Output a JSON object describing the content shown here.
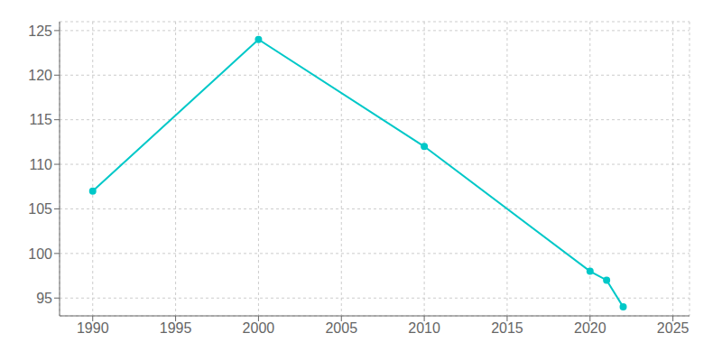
{
  "chart_data": {
    "type": "line",
    "x": [
      1990,
      2000,
      2010,
      2020,
      2021,
      2022
    ],
    "values": [
      107,
      124,
      112,
      98,
      97,
      94
    ],
    "color": "#00C8C8",
    "marker": "circle",
    "xlim": [
      1988,
      2026
    ],
    "ylim": [
      93,
      126
    ],
    "xticks": [
      1990,
      1995,
      2000,
      2005,
      2010,
      2015,
      2020,
      2025
    ],
    "yticks": [
      95,
      100,
      105,
      110,
      115,
      120,
      125
    ],
    "grid": true
  }
}
